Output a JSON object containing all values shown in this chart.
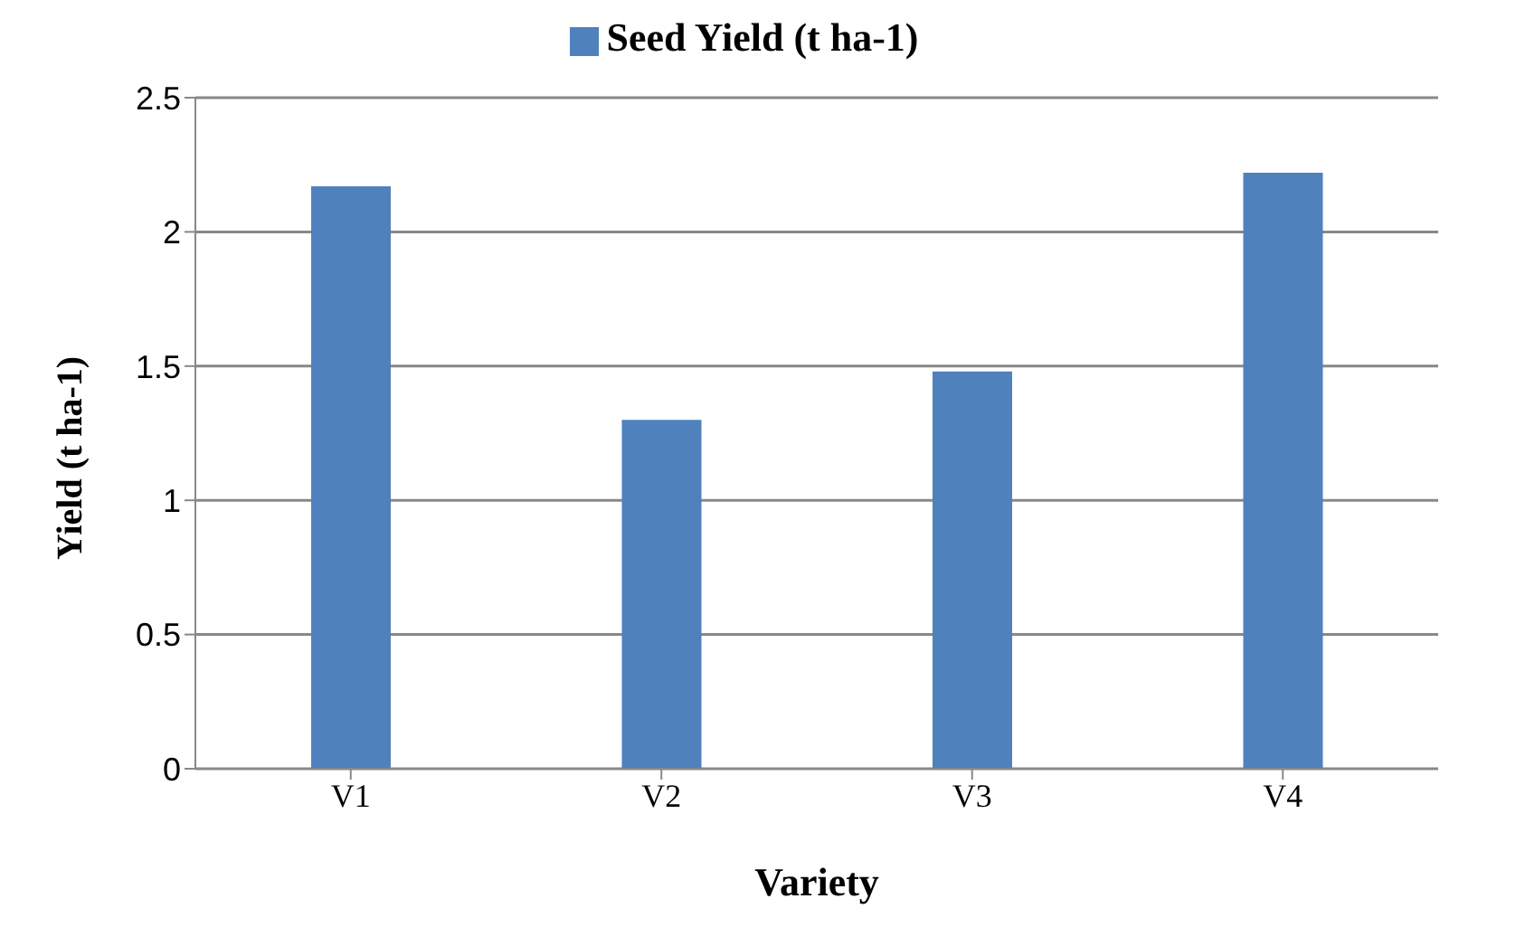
{
  "chart_data": {
    "type": "bar",
    "xlabel": "Variety",
    "ylabel": "Yield (t ha-1)",
    "categories": [
      "V1",
      "V2",
      "V3",
      "V4"
    ],
    "series": [
      {
        "name": "Seed Yield (t ha-1)",
        "color": "#4f81bd",
        "values": [
          2.17,
          1.3,
          1.48,
          2.22
        ]
      }
    ],
    "ylim": [
      0,
      2.5
    ],
    "yticks": [
      0,
      0.5,
      1,
      1.5,
      2,
      2.5
    ],
    "grid": "y",
    "legend": "top"
  }
}
